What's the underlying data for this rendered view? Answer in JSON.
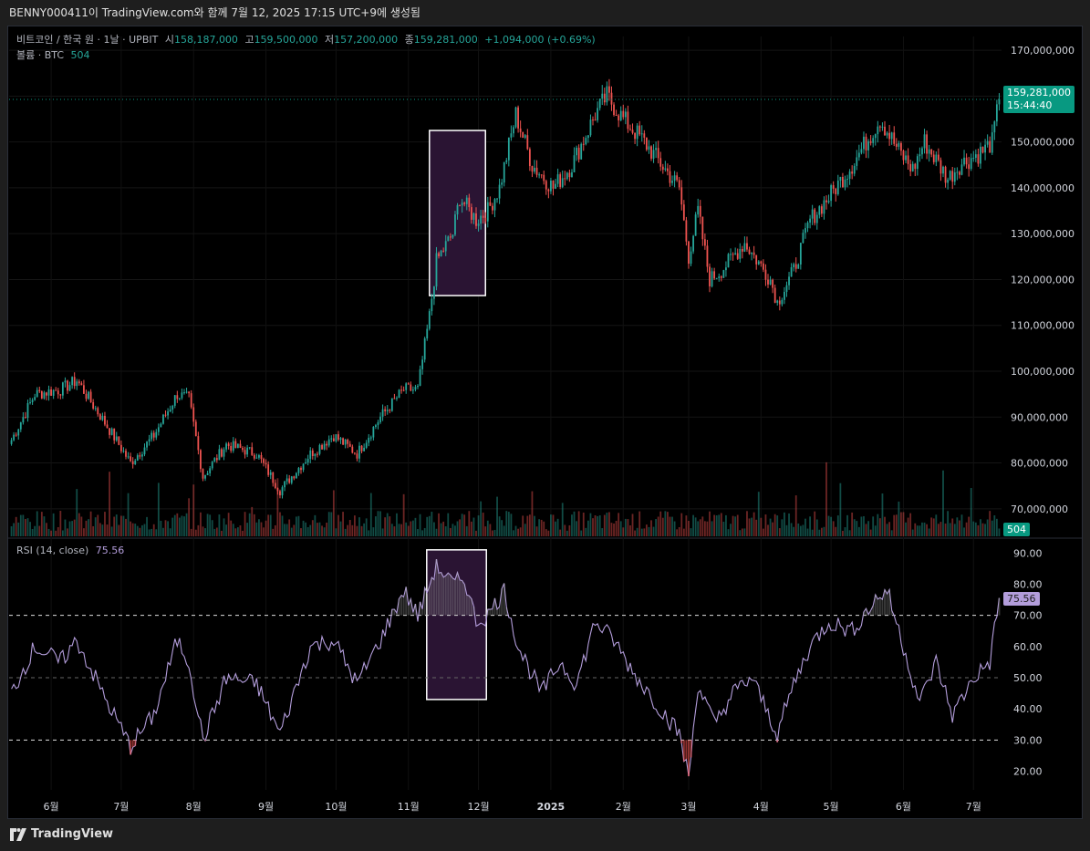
{
  "header": {
    "title": "BENNY000411이 TradingView.com와 함께 7월 12, 2025 17:15 UTC+9에 생성됨"
  },
  "legend": {
    "symbol": "비트코인 / 한국 원 · 1날 · UPBIT",
    "open_label": "시",
    "open": "158,187,000",
    "high_label": "고",
    "high": "159,500,000",
    "low_label": "저",
    "low": "157,200,000",
    "close_label": "종",
    "close": "159,281,000",
    "change": "+1,094,000 (+0.69%)",
    "volume_label": "볼륨 · BTC",
    "volume_value": "504"
  },
  "price_tag": {
    "price": "159,281,000",
    "countdown": "15:44:40"
  },
  "volume_tag": "504",
  "rsi": {
    "label": "RSI (14, close)",
    "value": "75.56"
  },
  "footer": {
    "brand": "TradingView"
  },
  "colors": {
    "up": "#26a69a",
    "down": "#ef5350",
    "rsi_line": "#b39ddb",
    "highlight_fill": "#2a1433",
    "highlight_border": "#ffffff",
    "price_tag": "#089981",
    "rsi_tag": "#b39ddb"
  },
  "chart_data": [
    {
      "type": "candlestick",
      "title": "",
      "x_tick_labels": [
        "6월",
        "7월",
        "8월",
        "9월",
        "10월",
        "11월",
        "12월",
        "2025",
        "2월",
        "3월",
        "4월",
        "5월",
        "6월",
        "7월"
      ],
      "y_tick_labels": [
        "170,000,000",
        "160,000,000",
        "150,000,000",
        "140,000,000",
        "130,000,000",
        "120,000,000",
        "110,000,000",
        "100,000,000",
        "90,000,000",
        "80,000,000",
        "70,000,000"
      ],
      "ylim": [
        64000000,
        173000000
      ],
      "last_price": 159281000,
      "close_series_keypoints": [
        [
          "2024-05-15",
          85000000
        ],
        [
          "2024-05-25",
          95000000
        ],
        [
          "2024-06-05",
          96000000
        ],
        [
          "2024-06-12",
          98000000
        ],
        [
          "2024-06-25",
          88000000
        ],
        [
          "2024-07-05",
          80000000
        ],
        [
          "2024-07-15",
          86000000
        ],
        [
          "2024-07-25",
          95000000
        ],
        [
          "2024-07-30",
          94000000
        ],
        [
          "2024-08-05",
          77000000
        ],
        [
          "2024-08-15",
          84000000
        ],
        [
          "2024-08-28",
          82000000
        ],
        [
          "2024-09-07",
          74000000
        ],
        [
          "2024-09-20",
          82000000
        ],
        [
          "2024-09-30",
          86000000
        ],
        [
          "2024-10-10",
          82000000
        ],
        [
          "2024-10-20",
          90000000
        ],
        [
          "2024-10-30",
          96000000
        ],
        [
          "2024-11-05",
          96000000
        ],
        [
          "2024-11-10",
          112000000
        ],
        [
          "2024-11-13",
          124000000
        ],
        [
          "2024-11-20",
          130000000
        ],
        [
          "2024-11-23",
          138000000
        ],
        [
          "2024-11-30",
          133000000
        ],
        [
          "2024-12-05",
          135000000
        ],
        [
          "2024-12-10",
          140000000
        ],
        [
          "2024-12-17",
          156000000
        ],
        [
          "2024-12-24",
          145000000
        ],
        [
          "2025-01-02",
          140000000
        ],
        [
          "2025-01-10",
          145000000
        ],
        [
          "2025-01-20",
          156000000
        ],
        [
          "2025-01-25",
          160000000
        ],
        [
          "2025-02-01",
          155000000
        ],
        [
          "2025-02-10",
          150000000
        ],
        [
          "2025-02-25",
          140000000
        ],
        [
          "2025-03-01",
          125000000
        ],
        [
          "2025-03-05",
          135000000
        ],
        [
          "2025-03-10",
          120000000
        ],
        [
          "2025-03-15",
          122000000
        ],
        [
          "2025-03-25",
          128000000
        ],
        [
          "2025-04-05",
          120000000
        ],
        [
          "2025-04-08",
          115000000
        ],
        [
          "2025-04-15",
          122000000
        ],
        [
          "2025-04-22",
          133000000
        ],
        [
          "2025-04-30",
          138000000
        ],
        [
          "2025-05-10",
          145000000
        ],
        [
          "2025-05-22",
          155000000
        ],
        [
          "2025-05-30",
          148000000
        ],
        [
          "2025-06-05",
          144000000
        ],
        [
          "2025-06-10",
          150000000
        ],
        [
          "2025-06-20",
          142000000
        ],
        [
          "2025-06-25",
          145000000
        ],
        [
          "2025-07-05",
          148000000
        ],
        [
          "2025-07-09",
          150000000
        ],
        [
          "2025-07-12",
          159281000
        ]
      ]
    },
    {
      "type": "line",
      "title": "",
      "series": [
        {
          "name": "RSI (14, close)"
        }
      ],
      "y_tick_labels": [
        "90.00",
        "80.00",
        "70.00",
        "60.00",
        "50.00",
        "40.00",
        "30.00",
        "20.00"
      ],
      "ylim": [
        14,
        93
      ],
      "reference_lines": [
        70,
        50,
        30
      ],
      "last_value": 75.56,
      "keypoints": [
        [
          "2024-05-15",
          45
        ],
        [
          "2024-05-25",
          60
        ],
        [
          "2024-06-05",
          55
        ],
        [
          "2024-06-12",
          62
        ],
        [
          "2024-06-25",
          42
        ],
        [
          "2024-07-05",
          28
        ],
        [
          "2024-07-15",
          38
        ],
        [
          "2024-07-25",
          62
        ],
        [
          "2024-07-30",
          55
        ],
        [
          "2024-08-05",
          30
        ],
        [
          "2024-08-15",
          50
        ],
        [
          "2024-08-28",
          48
        ],
        [
          "2024-09-07",
          32
        ],
        [
          "2024-09-20",
          60
        ],
        [
          "2024-09-30",
          62
        ],
        [
          "2024-10-10",
          48
        ],
        [
          "2024-10-20",
          62
        ],
        [
          "2024-10-30",
          78
        ],
        [
          "2024-11-05",
          70
        ],
        [
          "2024-11-13",
          86
        ],
        [
          "2024-11-20",
          80
        ],
        [
          "2024-11-25",
          82
        ],
        [
          "2024-11-30",
          68
        ],
        [
          "2024-12-05",
          70
        ],
        [
          "2024-12-12",
          78
        ],
        [
          "2024-12-18",
          60
        ],
        [
          "2024-12-28",
          45
        ],
        [
          "2025-01-05",
          55
        ],
        [
          "2025-01-12",
          48
        ],
        [
          "2025-01-20",
          68
        ],
        [
          "2025-01-28",
          62
        ],
        [
          "2025-02-05",
          52
        ],
        [
          "2025-02-15",
          42
        ],
        [
          "2025-02-25",
          32
        ],
        [
          "2025-03-01",
          18
        ],
        [
          "2025-03-05",
          48
        ],
        [
          "2025-03-12",
          35
        ],
        [
          "2025-03-20",
          45
        ],
        [
          "2025-03-28",
          50
        ],
        [
          "2025-04-08",
          32
        ],
        [
          "2025-04-15",
          48
        ],
        [
          "2025-04-22",
          60
        ],
        [
          "2025-04-30",
          68
        ],
        [
          "2025-05-10",
          65
        ],
        [
          "2025-05-20",
          75
        ],
        [
          "2025-05-25",
          78
        ],
        [
          "2025-06-01",
          60
        ],
        [
          "2025-06-08",
          42
        ],
        [
          "2025-06-15",
          55
        ],
        [
          "2025-06-22",
          38
        ],
        [
          "2025-07-01",
          50
        ],
        [
          "2025-07-08",
          55
        ],
        [
          "2025-07-12",
          75.56
        ]
      ]
    }
  ]
}
